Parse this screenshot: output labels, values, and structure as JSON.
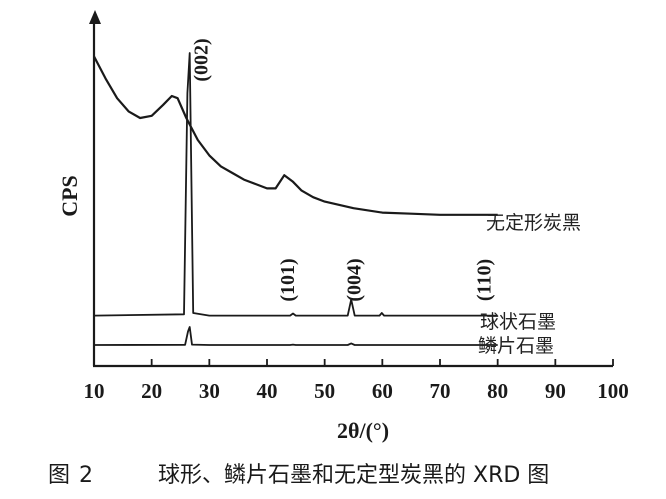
{
  "chart_data": {
    "type": "line",
    "title": "",
    "xlabel": "2θ/(°)",
    "ylabel": "CPS",
    "xlim": [
      10,
      100
    ],
    "xticks": [
      10,
      20,
      30,
      40,
      50,
      60,
      70,
      80,
      90,
      100
    ],
    "yticks": [],
    "series": [
      {
        "name": "无定形炭黑",
        "color": "#1a1a1a",
        "x": [
          10,
          12,
          14,
          16,
          18,
          20,
          22,
          23.5,
          24.5,
          26,
          28,
          30,
          32,
          34,
          36,
          38,
          40,
          41.5,
          43,
          44.5,
          46,
          48,
          50,
          55,
          60,
          65,
          70,
          75,
          80
        ],
        "y": [
          0.88,
          0.78,
          0.69,
          0.63,
          0.6,
          0.61,
          0.66,
          0.7,
          0.69,
          0.6,
          0.5,
          0.43,
          0.38,
          0.35,
          0.32,
          0.3,
          0.28,
          0.28,
          0.34,
          0.31,
          0.27,
          0.24,
          0.22,
          0.19,
          0.17,
          0.165,
          0.16,
          0.16,
          0.16
        ]
      },
      {
        "name": "球状石墨",
        "color": "#1a1a1a",
        "x": [
          10,
          25.6,
          26.2,
          26.6,
          27.2,
          30,
          44.0,
          44.5,
          45.0,
          54.0,
          54.6,
          55.2,
          59.5,
          59.9,
          60.3,
          80
        ],
        "y": [
          0.02,
          0.025,
          0.85,
          1.0,
          0.03,
          0.02,
          0.02,
          0.028,
          0.02,
          0.02,
          0.08,
          0.02,
          0.02,
          0.03,
          0.02,
          0.02
        ]
      },
      {
        "name": "鳞片石墨",
        "color": "#1a1a1a",
        "x": [
          10,
          25.8,
          26.3,
          26.6,
          27.0,
          30,
          44.0,
          44.5,
          45.0,
          54.0,
          54.6,
          55.2,
          80
        ],
        "y": [
          0.0,
          0.005,
          0.3,
          0.4,
          0.01,
          0.0,
          0.0,
          0.008,
          0.0,
          0.0,
          0.035,
          0.0,
          0.0
        ]
      }
    ],
    "annotations": [
      {
        "text": "(002)",
        "x": 28.5
      },
      {
        "text": "(101)",
        "x": 43.5
      },
      {
        "text": "(004)",
        "x": 55.0
      },
      {
        "text": "(110)",
        "x": 77.5
      }
    ]
  },
  "caption": {
    "figure_number": "图 2",
    "text": "球形、鳞片石墨和无定型炭黑的 XRD 图"
  }
}
